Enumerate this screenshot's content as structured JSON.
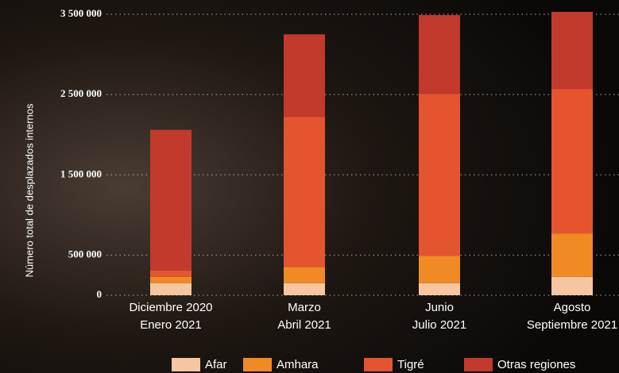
{
  "chart_data": {
    "type": "stacked_bar",
    "y_label": "Número total de desplazados internos",
    "categories": [
      [
        "Diciembre 2020",
        "Enero 2021"
      ],
      [
        "Marzo",
        "Abril 2021"
      ],
      [
        "Junio",
        "Julio 2021"
      ],
      [
        "Agosto",
        "Septiembre 2021"
      ]
    ],
    "series": [
      {
        "name": "Afar",
        "color": "#f6c6a0",
        "values": [
          150000,
          150000,
          150000,
          230000
        ]
      },
      {
        "name": "Amhara",
        "color": "#f08a24",
        "values": [
          80000,
          200000,
          340000,
          540000
        ]
      },
      {
        "name": "Tigré",
        "color": "#e4552f",
        "values": [
          80000,
          1870000,
          2020000,
          1800000
        ]
      },
      {
        "name": "Otras regiones",
        "color": "#c23a2c",
        "values": [
          1750000,
          1030000,
          980000,
          960000
        ]
      }
    ],
    "ylim": [
      0,
      3500000
    ],
    "yticks": [
      {
        "value": 0,
        "label": "0"
      },
      {
        "value": 500000,
        "label": "500 000"
      },
      {
        "value": 1500000,
        "label": "1 500 000"
      },
      {
        "value": 2500000,
        "label": "2 500 000"
      },
      {
        "value": 3500000,
        "label": "3 500 000"
      }
    ],
    "grid": true
  }
}
